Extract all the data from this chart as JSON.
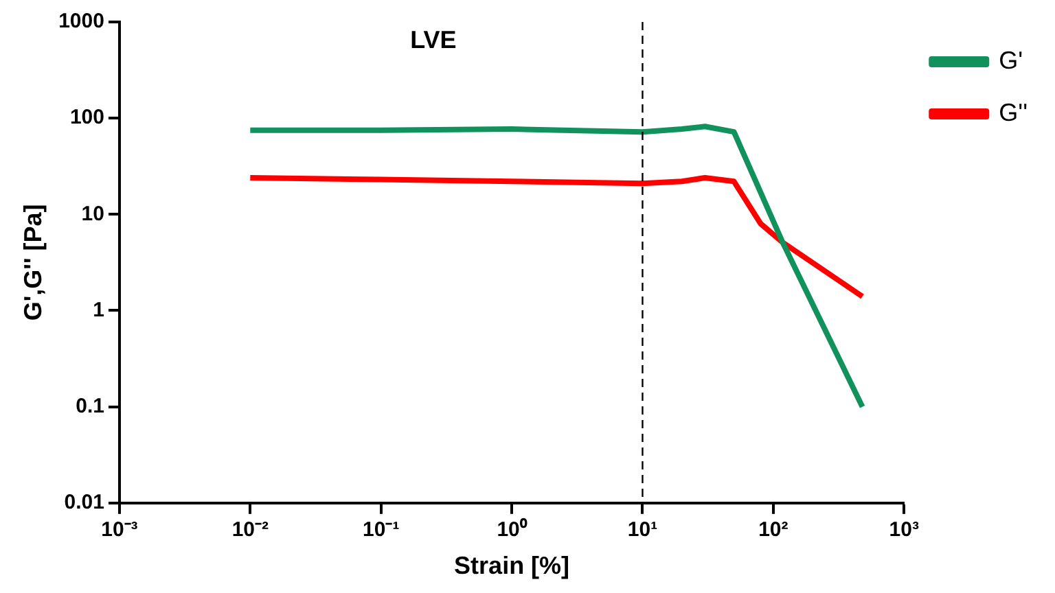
{
  "chart_data": {
    "type": "line",
    "xlabel": "Strain [%]",
    "ylabel": "G',G'' [Pa]",
    "log": "xy",
    "grid": false,
    "legend": "top right",
    "marker": "none",
    "line_style": "solid",
    "xlim": [
      0.001,
      1000
    ],
    "xticks": [
      {
        "value": 0.001,
        "label": "10⁻³"
      },
      {
        "value": 0.01,
        "label": "10⁻²"
      },
      {
        "value": 0.1,
        "label": "10⁻¹"
      },
      {
        "value": 1,
        "label": "10⁰"
      },
      {
        "value": 10,
        "label": "10¹"
      },
      {
        "value": 100,
        "label": "10²"
      },
      {
        "value": 1000,
        "label": "10³"
      }
    ],
    "ylim": [
      0.01,
      1000
    ],
    "yticks": [
      0.01,
      0.1,
      1,
      10,
      100,
      1000
    ],
    "series": [
      {
        "name": "G'",
        "color": "#11925c",
        "x": [
          0.01,
          0.1,
          1,
          10,
          20,
          30,
          50,
          118,
          480
        ],
        "values": [
          75,
          75,
          77,
          72,
          77,
          82,
          72,
          5.1,
          0.1
        ]
      },
      {
        "name": "G''",
        "color": "#ff0000",
        "x": [
          0.01,
          0.1,
          1,
          10,
          20,
          30,
          50,
          80,
          118,
          480
        ],
        "values": [
          24,
          23,
          22,
          21,
          22,
          24,
          22,
          8,
          5.1,
          1.4
        ]
      }
    ],
    "ref_lines": [
      {
        "axis": "x",
        "value": 10,
        "color": "#000000",
        "line_style": "dashed"
      }
    ],
    "annotations": [
      "LVE"
    ]
  }
}
